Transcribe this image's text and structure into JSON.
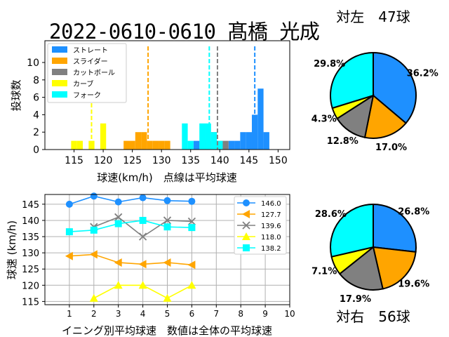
{
  "title": "2022-0610-0610 髙橋 光成",
  "colors": {
    "straight": "#1e90ff",
    "slider": "#ffa500",
    "cutball": "#808080",
    "curve": "#ffff00",
    "fork": "#00ffff"
  },
  "chart_data": [
    {
      "type": "bar",
      "subtype": "histogram",
      "xlabel": "球速(km/h)　点線は平均球速",
      "ylabel": "投球数",
      "xlim": [
        110,
        152
      ],
      "ylim": [
        0,
        12.5
      ],
      "xticks": [
        "115",
        "120",
        "125",
        "130",
        "135",
        "140",
        "145",
        "150"
      ],
      "yticks": [
        "0",
        "2",
        "4",
        "6",
        "8",
        "10"
      ],
      "legend_position": "upper-left",
      "series": [
        {
          "name": "ストレート",
          "key": "straight",
          "bins": [
            [
              136,
              1
            ],
            [
              137,
              1
            ],
            [
              142,
              1
            ],
            [
              143,
              1
            ],
            [
              144,
              2
            ],
            [
              145,
              2
            ],
            [
              146,
              4
            ],
            [
              147,
              7
            ],
            [
              148,
              2
            ]
          ],
          "mean": 146.0
        },
        {
          "name": "スライダー",
          "key": "slider",
          "bins": [
            [
              124,
              1
            ],
            [
              125,
              1
            ],
            [
              126,
              2
            ],
            [
              127,
              2
            ],
            [
              128,
              1
            ],
            [
              129,
              1
            ],
            [
              130,
              1
            ],
            [
              131,
              1
            ]
          ],
          "mean": 127.7
        },
        {
          "name": "カットボール",
          "key": "cutball",
          "bins": [
            [
              138,
              1
            ],
            [
              139,
              2
            ],
            [
              140,
              1
            ],
            [
              141,
              1
            ]
          ],
          "mean": 139.6
        },
        {
          "name": "カーブ",
          "key": "curve",
          "bins": [
            [
              115,
              1
            ],
            [
              116,
              1
            ],
            [
              118,
              1
            ],
            [
              120,
              3
            ]
          ],
          "mean": 118.0
        },
        {
          "name": "フォーク",
          "key": "fork",
          "bins": [
            [
              134,
              3
            ],
            [
              135,
              1
            ],
            [
              137,
              3
            ],
            [
              138,
              3
            ],
            [
              139,
              2
            ],
            [
              140,
              1
            ]
          ],
          "mean": 138.2
        }
      ]
    },
    {
      "type": "line",
      "xlabel": "イニング別平均球速　数値は全体の平均球速",
      "ylabel": "球速 (km/h)",
      "xlim": [
        0,
        10
      ],
      "ylim": [
        114,
        148
      ],
      "xticks": [
        "1",
        "2",
        "3",
        "4",
        "5",
        "6",
        "7",
        "8",
        "9",
        "10"
      ],
      "yticks": [
        "115",
        "120",
        "125",
        "130",
        "135",
        "140",
        "145"
      ],
      "grid": true,
      "legend_position": "upper-right",
      "series": [
        {
          "name": "146.0",
          "key": "straight",
          "marker": "circle",
          "x": [
            1,
            2,
            3,
            4,
            5,
            6
          ],
          "values": [
            145.0,
            147.5,
            145.7,
            147.0,
            146.1,
            145.9
          ]
        },
        {
          "name": "127.7",
          "key": "slider",
          "marker": "triangle-left",
          "x": [
            1,
            2,
            3,
            4,
            5,
            6
          ],
          "values": [
            129.0,
            129.5,
            127.0,
            126.5,
            127.0,
            126.3
          ]
        },
        {
          "name": "139.6",
          "key": "cutball",
          "marker": "x",
          "x": [
            2,
            3,
            4,
            5,
            6
          ],
          "values": [
            138.0,
            141.0,
            135.0,
            140.0,
            139.7
          ]
        },
        {
          "name": "118.0",
          "key": "curve",
          "marker": "triangle-up",
          "x": [
            2,
            3,
            4,
            5,
            6
          ],
          "values": [
            116.0,
            120.0,
            120.0,
            116.0,
            120.0
          ]
        },
        {
          "name": "138.2",
          "key": "fork",
          "marker": "square",
          "x": [
            1,
            2,
            3,
            4,
            5,
            6
          ],
          "values": [
            136.5,
            137.0,
            139.0,
            140.0,
            138.0,
            137.8
          ]
        }
      ]
    },
    {
      "type": "pie",
      "title": "対左　47球",
      "slices": [
        {
          "key": "straight",
          "value": 36.2,
          "label": "36.2%"
        },
        {
          "key": "slider",
          "value": 17.0,
          "label": "17.0%"
        },
        {
          "key": "cutball",
          "value": 12.8,
          "label": "12.8%"
        },
        {
          "key": "curve",
          "value": 4.3,
          "label": "4.3%"
        },
        {
          "key": "fork",
          "value": 29.8,
          "label": "29.8%"
        }
      ]
    },
    {
      "type": "pie",
      "title": "対右　56球",
      "slices": [
        {
          "key": "straight",
          "value": 26.8,
          "label": "26.8%"
        },
        {
          "key": "slider",
          "value": 19.6,
          "label": "19.6%"
        },
        {
          "key": "cutball",
          "value": 17.9,
          "label": "17.9%"
        },
        {
          "key": "curve",
          "value": 7.1,
          "label": "7.1%"
        },
        {
          "key": "fork",
          "value": 28.6,
          "label": "28.6%"
        }
      ]
    }
  ]
}
